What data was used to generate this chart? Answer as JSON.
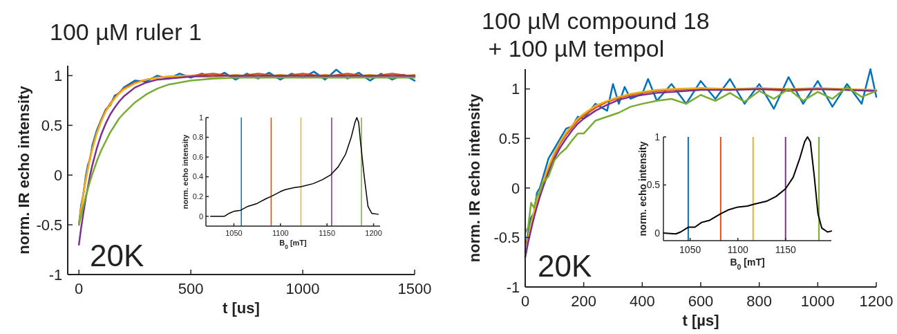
{
  "chart_data": [
    {
      "type": "line",
      "title": "100 µM ruler 1",
      "xlabel": "t [us]",
      "ylabel": "norm. IR echo intensity",
      "annotations": [
        "20K"
      ],
      "xlim": [
        -50,
        1500
      ],
      "ylim": [
        -1,
        1.1
      ],
      "xticks": [
        0,
        500,
        1000,
        1500
      ],
      "yticks": [
        -1,
        -0.5,
        0,
        0.5,
        1
      ],
      "series": [
        {
          "color": "#0072bd",
          "x": [
            0,
            10,
            20,
            30,
            40,
            50,
            60,
            80,
            100,
            120,
            140,
            160,
            180,
            200,
            250,
            300,
            350,
            400,
            450,
            500,
            550,
            600,
            650,
            700,
            750,
            800,
            850,
            900,
            950,
            1000,
            1050,
            1100,
            1150,
            1200,
            1250,
            1300,
            1350,
            1400,
            1450,
            1500
          ],
          "values": [
            -0.5,
            -0.3,
            -0.2,
            -0.02,
            0.1,
            0.16,
            0.3,
            0.45,
            0.56,
            0.66,
            0.7,
            0.8,
            0.82,
            0.88,
            0.95,
            0.94,
            1.0,
            0.97,
            1.02,
            0.98,
            1.02,
            0.97,
            1.03,
            0.96,
            1.02,
            0.97,
            1.03,
            0.96,
            1.02,
            0.98,
            1.04,
            0.96,
            1.06,
            0.97,
            1.03,
            0.95,
            1.02,
            0.96,
            1.01,
            0.95
          ]
        },
        {
          "color": "#d95319",
          "x": [
            0,
            10,
            20,
            30,
            40,
            50,
            60,
            80,
            100,
            120,
            140,
            160,
            180,
            200,
            250,
            300,
            350,
            400,
            500,
            600,
            700,
            800,
            900,
            1000,
            1100,
            1200,
            1300,
            1400,
            1500
          ],
          "values": [
            -0.5,
            -0.33,
            -0.18,
            -0.05,
            0.07,
            0.18,
            0.27,
            0.43,
            0.55,
            0.65,
            0.72,
            0.78,
            0.83,
            0.87,
            0.93,
            0.96,
            0.98,
            0.99,
            1,
            1.02,
            0.99,
            1.02,
            0.99,
            1.02,
            0.99,
            1.02,
            0.99,
            1.02,
            0.99
          ]
        },
        {
          "color": "#edb120",
          "x": [
            0,
            10,
            20,
            30,
            40,
            50,
            60,
            80,
            100,
            120,
            140,
            160,
            180,
            200,
            250,
            300,
            350,
            400,
            500,
            600,
            700,
            800,
            900,
            1000,
            1100,
            1200,
            1300,
            1400,
            1500
          ],
          "values": [
            -0.5,
            -0.34,
            -0.19,
            -0.06,
            0.06,
            0.17,
            0.26,
            0.42,
            0.54,
            0.64,
            0.71,
            0.77,
            0.82,
            0.86,
            0.92,
            0.96,
            0.98,
            0.99,
            1,
            0.98,
            1.01,
            0.98,
            1.01,
            0.98,
            1.01,
            0.98,
            1.01,
            0.98,
            1.01
          ]
        },
        {
          "color": "#7e2f8e",
          "x": [
            0,
            10,
            20,
            30,
            40,
            50,
            60,
            80,
            100,
            120,
            140,
            160,
            180,
            200,
            250,
            300,
            350,
            400,
            500,
            600,
            700,
            800,
            900,
            1000,
            1100,
            1200,
            1300,
            1400,
            1500
          ],
          "values": [
            -0.7,
            -0.53,
            -0.38,
            -0.24,
            -0.12,
            0,
            0.1,
            0.27,
            0.41,
            0.52,
            0.61,
            0.68,
            0.74,
            0.79,
            0.88,
            0.93,
            0.96,
            0.97,
            0.99,
            1,
            1,
            1,
            1,
            1,
            1,
            1,
            1,
            1,
            1
          ]
        },
        {
          "color": "#77ac30",
          "x": [
            0,
            10,
            20,
            30,
            40,
            50,
            60,
            80,
            100,
            120,
            140,
            160,
            180,
            200,
            250,
            300,
            350,
            400,
            500,
            600,
            700,
            800,
            900,
            1000,
            1100,
            1200,
            1300,
            1400,
            1500
          ],
          "values": [
            -0.5,
            -0.4,
            -0.31,
            -0.22,
            -0.14,
            -0.06,
            0.01,
            0.14,
            0.25,
            0.34,
            0.43,
            0.5,
            0.57,
            0.62,
            0.73,
            0.81,
            0.87,
            0.91,
            0.95,
            0.97,
            0.98,
            0.98,
            0.98,
            0.98,
            0.98,
            0.98,
            0.98,
            0.98,
            0.98
          ]
        }
      ]
    },
    {
      "type": "line",
      "xlabel": "B$_{0}$ [mT]",
      "ylabel": "norm. echo intensity",
      "xlim": [
        1020,
        1207
      ],
      "ylim": [
        -0.1,
        1
      ],
      "xticks": [
        1050,
        1100,
        1150,
        1200
      ],
      "yticks": [
        0,
        0.2,
        0.4,
        0.6,
        0.8,
        1
      ],
      "series": [
        {
          "color": "#000000",
          "x": [
            1025,
            1040,
            1045,
            1050,
            1057,
            1065,
            1075,
            1085,
            1090,
            1100,
            1105,
            1115,
            1122,
            1135,
            1145,
            1154,
            1162,
            1170,
            1176,
            1180,
            1182,
            1184,
            1186,
            1190,
            1194,
            1198,
            1205
          ],
          "values": [
            0,
            0,
            0.03,
            0.05,
            0.06,
            0.1,
            0.13,
            0.18,
            0.2,
            0.25,
            0.27,
            0.29,
            0.3,
            0.33,
            0.37,
            0.42,
            0.5,
            0.63,
            0.8,
            0.95,
            1.0,
            0.95,
            0.75,
            0.4,
            0.1,
            0.03,
            0.02
          ]
        }
      ],
      "ref_lines": [
        {
          "axis": "x",
          "value": 1058,
          "color": "#0072bd"
        },
        {
          "axis": "x",
          "value": 1090,
          "color": "#d95319"
        },
        {
          "axis": "x",
          "value": 1122,
          "color": "#edb120"
        },
        {
          "axis": "x",
          "value": 1155,
          "color": "#7e2f8e"
        },
        {
          "axis": "x",
          "value": 1187,
          "color": "#77ac30"
        }
      ]
    },
    {
      "type": "line",
      "title": "100 µM compound 18\n + 100 µM tempol",
      "xlabel": "t [µs]",
      "ylabel": "norm. IR echo intensity",
      "annotations": [
        "20K"
      ],
      "xlim": [
        0,
        1200
      ],
      "ylim": [
        -1,
        1.2
      ],
      "xticks": [
        0,
        200,
        400,
        600,
        800,
        1000,
        1200
      ],
      "yticks": [
        -1,
        -0.5,
        0,
        0.5,
        1
      ],
      "series": [
        {
          "color": "#0072bd",
          "x": [
            0,
            10,
            20,
            30,
            40,
            50,
            60,
            80,
            100,
            120,
            140,
            160,
            180,
            200,
            240,
            280,
            300,
            320,
            340,
            360,
            400,
            420,
            450,
            500,
            550,
            600,
            650,
            700,
            750,
            800,
            850,
            900,
            950,
            1000,
            1050,
            1100,
            1150,
            1180,
            1200
          ],
          "values": [
            -0.65,
            -0.45,
            -0.3,
            -0.25,
            -0.05,
            0.0,
            0.1,
            0.3,
            0.4,
            0.5,
            0.6,
            0.62,
            0.72,
            0.7,
            0.85,
            0.78,
            1.05,
            0.85,
            1.02,
            0.9,
            0.95,
            1.1,
            0.88,
            1.05,
            0.85,
            1.08,
            0.9,
            1.1,
            0.85,
            1.05,
            0.8,
            1.12,
            0.85,
            1.08,
            0.82,
            1.05,
            0.85,
            1.2,
            0.92
          ]
        },
        {
          "color": "#d95319",
          "x": [
            0,
            10,
            20,
            30,
            40,
            50,
            60,
            80,
            100,
            120,
            140,
            160,
            180,
            200,
            240,
            280,
            320,
            360,
            400,
            450,
            500,
            600,
            700,
            800,
            900,
            1000,
            1100,
            1200
          ],
          "values": [
            -0.65,
            -0.51,
            -0.38,
            -0.26,
            -0.15,
            -0.05,
            0.04,
            0.2,
            0.34,
            0.45,
            0.54,
            0.61,
            0.68,
            0.73,
            0.81,
            0.87,
            0.91,
            0.94,
            0.96,
            0.98,
            0.99,
            1,
            0.99,
            1,
            0.98,
            1,
            0.99,
            0.98
          ]
        },
        {
          "color": "#edb120",
          "x": [
            0,
            10,
            20,
            30,
            40,
            50,
            60,
            80,
            100,
            120,
            140,
            160,
            180,
            200,
            240,
            280,
            320,
            360,
            400,
            450,
            500,
            600,
            700,
            800,
            900,
            1000,
            1100,
            1200
          ],
          "values": [
            -0.7,
            -0.5,
            -0.36,
            -0.24,
            -0.13,
            -0.03,
            0.06,
            0.22,
            0.36,
            0.47,
            0.56,
            0.63,
            0.7,
            0.75,
            0.83,
            0.88,
            0.92,
            0.95,
            0.97,
            0.99,
            1,
            1.01,
            1,
            1.01,
            1,
            1.01,
            1,
            0.99
          ]
        },
        {
          "color": "#7e2f8e",
          "x": [
            0,
            10,
            20,
            30,
            40,
            50,
            60,
            80,
            100,
            120,
            140,
            160,
            180,
            200,
            240,
            280,
            320,
            360,
            400,
            450,
            500,
            600,
            700,
            800,
            900,
            1000,
            1100,
            1200
          ],
          "values": [
            -0.7,
            -0.55,
            -0.42,
            -0.3,
            -0.19,
            -0.09,
            0,
            0.16,
            0.3,
            0.41,
            0.5,
            0.58,
            0.65,
            0.7,
            0.78,
            0.84,
            0.89,
            0.92,
            0.94,
            0.96,
            0.97,
            0.99,
            0.99,
            1,
            0.99,
            1,
            0.99,
            0.98
          ]
        },
        {
          "color": "#77ac30",
          "x": [
            0,
            10,
            20,
            30,
            40,
            50,
            60,
            80,
            100,
            120,
            140,
            160,
            180,
            200,
            240,
            280,
            320,
            360,
            400,
            450,
            500,
            550,
            600,
            650,
            700,
            750,
            800,
            850,
            900,
            950,
            1000,
            1050,
            1100,
            1150,
            1200
          ],
          "values": [
            -0.45,
            -0.4,
            -0.15,
            -0.2,
            -0.08,
            -0.05,
            0.05,
            0.12,
            0.28,
            0.35,
            0.4,
            0.48,
            0.55,
            0.55,
            0.68,
            0.72,
            0.76,
            0.82,
            0.85,
            0.88,
            0.9,
            0.85,
            0.94,
            0.88,
            0.96,
            0.87,
            0.98,
            0.9,
            1.0,
            0.88,
            0.97,
            0.9,
            1.02,
            0.92,
            0.98
          ]
        }
      ]
    },
    {
      "type": "line",
      "xlabel": "B$_{0}$ [mT]",
      "ylabel": "norm. echo intensity",
      "xlim": [
        1022,
        1198
      ],
      "ylim": [
        -0.08,
        1
      ],
      "xticks": [
        1050,
        1100,
        1150
      ],
      "yticks": [
        0,
        0.5,
        1
      ],
      "series": [
        {
          "color": "#000000",
          "x": [
            1022,
            1035,
            1040,
            1048,
            1055,
            1062,
            1070,
            1082,
            1090,
            1100,
            1110,
            1117,
            1130,
            1140,
            1150,
            1158,
            1165,
            1170,
            1173,
            1176,
            1180,
            1184,
            1188,
            1194,
            1198
          ],
          "values": [
            0,
            -0.01,
            0.01,
            0.06,
            0.06,
            0.11,
            0.13,
            0.2,
            0.24,
            0.27,
            0.28,
            0.3,
            0.33,
            0.38,
            0.46,
            0.58,
            0.78,
            0.95,
            1.0,
            0.95,
            0.6,
            0.2,
            0.05,
            0.01,
            0.02
          ]
        }
      ],
      "ref_lines": [
        {
          "axis": "x",
          "value": 1048,
          "color": "#0072bd"
        },
        {
          "axis": "x",
          "value": 1082,
          "color": "#d95319"
        },
        {
          "axis": "x",
          "value": 1116,
          "color": "#edb120"
        },
        {
          "axis": "x",
          "value": 1150,
          "color": "#7e2f8e"
        },
        {
          "axis": "x",
          "value": 1185,
          "color": "#77ac30"
        }
      ]
    }
  ]
}
